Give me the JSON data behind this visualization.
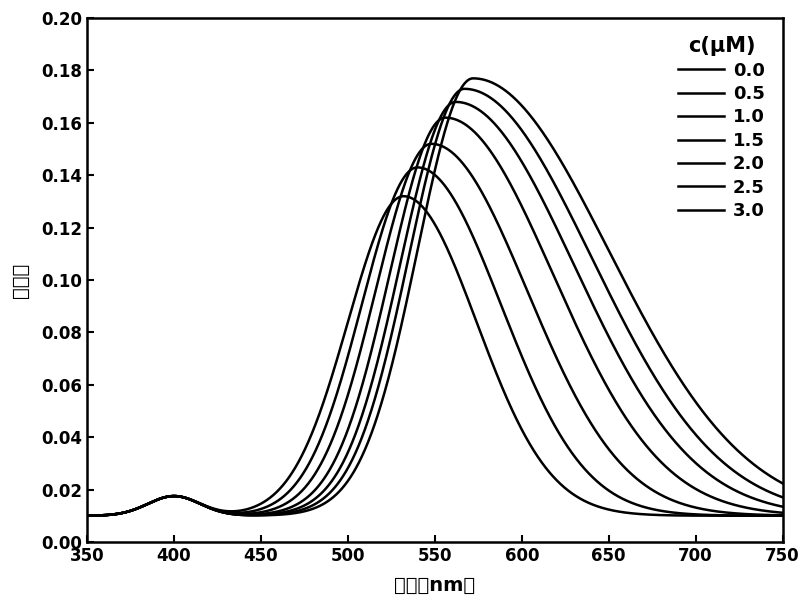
{
  "xlabel": "波长（nm）",
  "ylabel": "吸光度",
  "xlim": [
    350,
    750
  ],
  "ylim": [
    0.0,
    0.2
  ],
  "xticks": [
    350,
    400,
    450,
    500,
    550,
    600,
    650,
    700,
    750
  ],
  "yticks": [
    0.0,
    0.02,
    0.04,
    0.06,
    0.08,
    0.1,
    0.12,
    0.14,
    0.16,
    0.18,
    0.2
  ],
  "legend_title": "c(μM)",
  "concentrations": [
    "0.0",
    "0.5",
    "1.0",
    "1.5",
    "2.0",
    "2.5",
    "3.0"
  ],
  "peak_wavelengths": [
    532,
    540,
    548,
    556,
    562,
    567,
    572
  ],
  "peak_absorptions": [
    0.122,
    0.133,
    0.142,
    0.152,
    0.158,
    0.163,
    0.167
  ],
  "sigma_left": [
    32,
    32,
    32,
    32,
    32,
    32,
    32
  ],
  "sigma_right": [
    42,
    48,
    55,
    62,
    68,
    73,
    78
  ],
  "shoulder_wl": 400,
  "shoulder_abs": 0.0075,
  "shoulder_sigma": 15,
  "baseline": 0.01,
  "background_color": "#ffffff",
  "line_color": "#000000"
}
